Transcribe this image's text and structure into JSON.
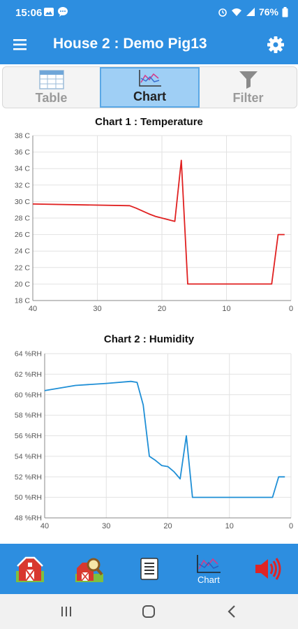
{
  "status": {
    "time": "15:06",
    "battery": "76%"
  },
  "app": {
    "title": "House 2 : Demo Pig13"
  },
  "tabs": [
    {
      "label": "Table",
      "icon": "table-icon",
      "active": false
    },
    {
      "label": "Chart",
      "icon": "chart-icon",
      "active": true
    },
    {
      "label": "Filter",
      "icon": "filter-icon",
      "active": false
    }
  ],
  "charts": [
    {
      "title": "Chart 1 : Temperature",
      "unit": "C",
      "line_color": "#e02020",
      "chart_data": {
        "type": "line",
        "x": [
          40,
          25,
          24,
          22,
          21,
          19,
          18,
          17,
          16,
          3,
          2,
          1
        ],
        "y": [
          29.7,
          29.5,
          29.2,
          28.5,
          28.2,
          27.8,
          27.6,
          35.0,
          20.0,
          20.0,
          26.0,
          26.0
        ],
        "ylim": [
          18,
          38
        ],
        "xlim": [
          40,
          0
        ],
        "yticks": [
          "38 C",
          "36 C",
          "34 C",
          "32 C",
          "30 C",
          "28 C",
          "26 C",
          "24 C",
          "22 C",
          "20 C",
          "18 C"
        ],
        "xticks": [
          "40",
          "30",
          "20",
          "10",
          "0"
        ]
      }
    },
    {
      "title": "Chart 2 : Humidity",
      "unit": "%RH",
      "line_color": "#1f8fd6",
      "chart_data": {
        "type": "line",
        "x": [
          40,
          35,
          30,
          26,
          25,
          24,
          23,
          22,
          21,
          20,
          19,
          18,
          17,
          16,
          3,
          2,
          1
        ],
        "y": [
          60.4,
          60.9,
          61.1,
          61.3,
          61.2,
          59.0,
          54.0,
          53.6,
          53.1,
          53.0,
          52.5,
          51.8,
          56.0,
          50.0,
          50.0,
          52.0,
          52.0
        ],
        "ylim": [
          48,
          64
        ],
        "xlim": [
          40,
          0
        ],
        "yticks": [
          "64 %RH",
          "62 %RH",
          "60 %RH",
          "58 %RH",
          "56 %RH",
          "54 %RH",
          "52 %RH",
          "50 %RH",
          "48 %RH"
        ],
        "xticks": [
          "40",
          "30",
          "20",
          "10",
          "0"
        ]
      }
    }
  ],
  "bottom_nav": [
    {
      "icon": "barn-icon",
      "label": ""
    },
    {
      "icon": "barn-search-icon",
      "label": ""
    },
    {
      "icon": "document-icon",
      "label": ""
    },
    {
      "icon": "chart-icon",
      "label": "Chart"
    },
    {
      "icon": "speaker-icon",
      "label": ""
    }
  ]
}
